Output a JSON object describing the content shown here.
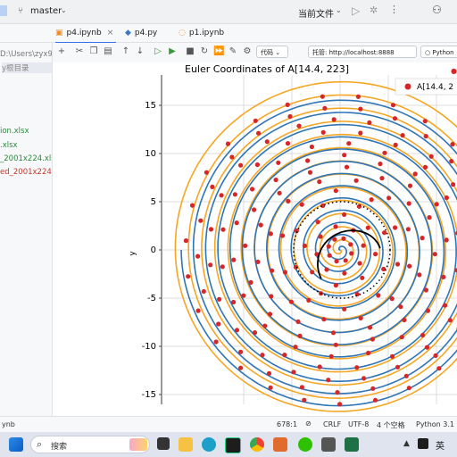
{
  "titlebar": {
    "branch": "master",
    "current_file": "当前文件"
  },
  "tabs": [
    {
      "label": "p4.ipynb",
      "active": true
    },
    {
      "label": "p4.py",
      "active": false
    },
    {
      "label": "p1.ipynb",
      "active": false
    }
  ],
  "left_panel": {
    "path": "D:\\Users\\zyx9",
    "root_label": "y根目录",
    "files": [
      "ion.xlsx",
      ".xlsx",
      "_2001x224.xls",
      "ed_2001x224.x"
    ]
  },
  "toolbar": {
    "cell_type": "代码",
    "host_label": "托管:",
    "host_value": "http://localhost:8888",
    "kernel": "Python"
  },
  "chart_data": {
    "type": "line",
    "title": "Euler Coordinates of A[14.4, 223]",
    "ylabel": "y",
    "ylim": [
      -16,
      18
    ],
    "yticks": [
      15,
      10,
      5,
      0,
      -5,
      -10,
      -15
    ],
    "legend": {
      "placement": "top-right",
      "entry": "A[14.4, 2"
    },
    "series": [
      {
        "role": "outer spiral",
        "color": "#f5a623",
        "turns": 13
      },
      {
        "role": "inner spiral",
        "color": "#2e75b6",
        "turns": 13
      },
      {
        "role": "points",
        "color": "#d62728"
      },
      {
        "role": "path",
        "color": "#000000"
      }
    ]
  },
  "statusbar": {
    "left": "ynb",
    "position": "678:1",
    "line_ending": "CRLF",
    "encoding": "UTF-8",
    "indent": "4 个空格",
    "interpreter": "Python 3.1"
  },
  "taskbar": {
    "search_placeholder": "搜索",
    "ime": "英"
  },
  "colors": {
    "accent": "#3574f0",
    "orange_spiral": "#f5a623",
    "blue_spiral": "#2e75b6",
    "points": "#d62728"
  }
}
